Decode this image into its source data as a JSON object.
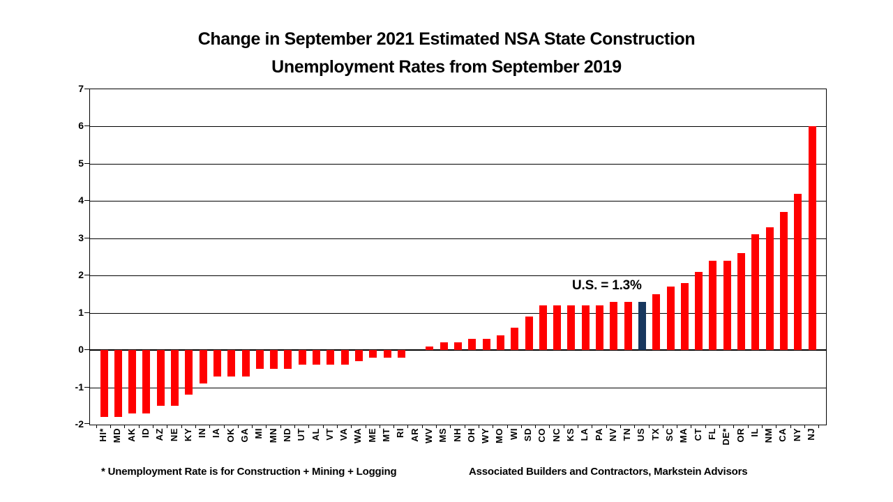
{
  "page": {
    "background": "#FFFFFF"
  },
  "chart_data": {
    "type": "bar",
    "title_line1": "Change in September 2021 Estimated NSA State Construction",
    "title_line2": "Unemployment Rates from September 2019",
    "categories": [
      "HI*",
      "MD",
      "AK",
      "ID",
      "AZ",
      "NE",
      "KY",
      "IN",
      "IA",
      "OK",
      "GA",
      "MI",
      "MN",
      "ND",
      "UT",
      "AL",
      "VT",
      "VA",
      "WA",
      "ME",
      "MT",
      "RI",
      "AR",
      "WV",
      "MS",
      "NH",
      "OH",
      "WY",
      "MO",
      "WI",
      "SD",
      "CO",
      "NC",
      "KS",
      "LA",
      "PA",
      "NV",
      "TN",
      "US",
      "TX",
      "SC",
      "MA",
      "CT",
      "FL",
      "DE*",
      "OR",
      "IL",
      "NM",
      "CA",
      "NY",
      "NJ"
    ],
    "values": [
      -1.8,
      -1.8,
      -1.7,
      -1.7,
      -1.5,
      -1.5,
      -1.2,
      -0.9,
      -0.7,
      -0.7,
      -0.7,
      -0.5,
      -0.5,
      -0.5,
      -0.4,
      -0.4,
      -0.4,
      -0.4,
      -0.3,
      -0.2,
      -0.2,
      -0.2,
      0.0,
      0.1,
      0.2,
      0.2,
      0.3,
      0.3,
      0.4,
      0.6,
      0.9,
      1.2,
      1.2,
      1.2,
      1.2,
      1.2,
      1.3,
      1.3,
      1.3,
      1.5,
      1.7,
      1.8,
      2.1,
      2.4,
      2.4,
      2.6,
      3.1,
      3.3,
      3.7,
      4.2,
      6.0
    ],
    "bar_color": "#FF0000",
    "highlight_category": "US",
    "highlight_color": "#17375E",
    "annotation": "U.S. = 1.3%",
    "ylim": [
      -2,
      7
    ],
    "yticks": [
      7,
      6,
      5,
      4,
      3,
      2,
      1,
      0,
      -1,
      -2
    ],
    "grid": true,
    "legend": "none",
    "footnote_left": "* Unemployment Rate is for Construction + Mining + Logging",
    "footnote_right": "Associated Builders and Contractors, Markstein Advisors"
  }
}
